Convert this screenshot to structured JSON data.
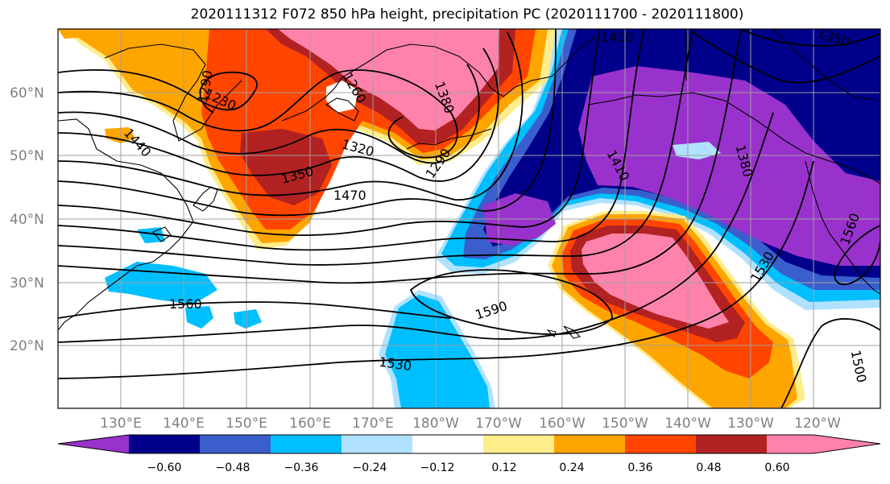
{
  "title": "2020111312 F072 850 hPa height, precipitation PC (2020111700 - 2020111800)",
  "lat_labels": [
    "60°N",
    "50°N",
    "40°N",
    "30°N",
    "20°N"
  ],
  "lon_labels": [
    "130°E",
    "140°E",
    "150°E",
    "160°E",
    "170°E",
    "180°W",
    "170°W",
    "160°W",
    "150°W",
    "140°W",
    "130°W",
    "120°W"
  ],
  "contour_labels": [
    "1410",
    "1350",
    "1290",
    "1230",
    "1260",
    "1380",
    "1320",
    "1290",
    "1350",
    "1470",
    "1440",
    "1410",
    "1380",
    "1560",
    "1530",
    "1560",
    "1590",
    "1530",
    "1500"
  ],
  "colorbar": {
    "ticks": [
      "−0.60",
      "−0.48",
      "−0.36",
      "−0.24",
      "−0.12",
      "0.12",
      "0.24",
      "0.36",
      "0.48",
      "0.60"
    ],
    "colors": [
      "#9932cc",
      "#00008b",
      "#3a5fcd",
      "#00bfff",
      "#b0e2ff",
      "#ffffff",
      "#ffec8b",
      "#ffa500",
      "#ff4500",
      "#b22222",
      "#ff82ab"
    ]
  }
}
